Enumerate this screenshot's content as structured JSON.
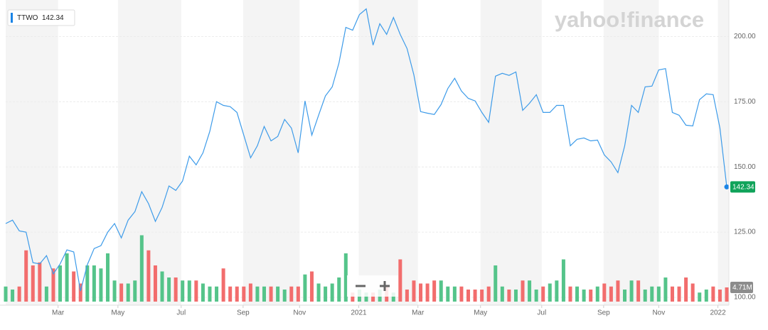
{
  "chart_data": {
    "type": "line",
    "watermark": "yahoo!finance",
    "series": [
      {
        "name": "TTWO",
        "color": "#3d9be9",
        "values": [
          128.3,
          129.6,
          125.5,
          125,
          113.3,
          112.8,
          116,
          109,
          112.8,
          118.2,
          117.4,
          102.4,
          112.5,
          118.7,
          119.8,
          125,
          128.3,
          122.8,
          129.6,
          132.9,
          140.5,
          135.9,
          129.1,
          134.5,
          142.7,
          141,
          144.6,
          154.1,
          150.8,
          155.4,
          163.6,
          175,
          173.6,
          173.1,
          170.9,
          162.2,
          153.5,
          158.1,
          165.5,
          160,
          161.7,
          168.2,
          164.9,
          155.4,
          175.3,
          162.2,
          169.8,
          177.2,
          180.7,
          189.9,
          203.5,
          202.4,
          208.4,
          210.6,
          196.7,
          204.9,
          200.8,
          207.3,
          200.8,
          195.4,
          185.3,
          171.2,
          170.6,
          170.1,
          173.9,
          180.1,
          184,
          179.1,
          176.3,
          175.3,
          170.9,
          167.1,
          184.8,
          185.9,
          185.1,
          186.4,
          171.7,
          174.4,
          177.7,
          170.9,
          170.9,
          173.6,
          173.6,
          158.1,
          160.6,
          161.1,
          160,
          160.3,
          154.6,
          151.9,
          147.8,
          158.1,
          173.6,
          170.9,
          180.7,
          181,
          187.2,
          187.7,
          170.9,
          169.8,
          166,
          165.7,
          175.8,
          178,
          177.7,
          164.9,
          142.34
        ]
      },
      {
        "type": "bar",
        "axis": "y2",
        "up_color": "#55c48a",
        "down_color": "#f26d6d",
        "values": [
          5,
          4,
          5,
          17,
          12,
          13,
          5,
          11,
          12,
          16,
          10,
          6,
          12,
          12,
          11,
          16,
          7,
          6,
          6,
          7,
          22,
          17,
          12,
          10,
          8,
          8,
          7,
          7,
          7,
          6,
          5,
          5,
          11,
          5,
          5,
          5,
          6,
          5,
          5,
          5,
          5,
          4,
          5,
          5,
          9,
          10,
          6,
          5,
          6,
          8,
          16,
          3,
          4,
          3,
          3,
          4,
          5,
          3,
          14,
          4,
          7,
          6,
          6,
          7,
          7,
          5,
          5,
          5,
          4,
          4,
          4,
          5,
          12,
          5,
          4,
          4,
          7,
          7,
          4,
          5,
          6,
          7,
          14,
          5,
          5,
          4,
          4,
          5,
          6,
          5,
          7,
          4,
          7,
          7,
          4,
          5,
          5,
          8,
          5,
          5,
          8,
          6,
          3,
          4,
          5,
          4,
          4.71
        ]
      }
    ],
    "xlim": [
      0,
      106
    ],
    "xticks": [
      {
        "value": 7.7,
        "label": "Mar"
      },
      {
        "value": 16.5,
        "label": "May"
      },
      {
        "value": 25.8,
        "label": "Jul"
      },
      {
        "value": 34.9,
        "label": "Sep"
      },
      {
        "value": 43.2,
        "label": "Nov"
      },
      {
        "value": 51.9,
        "label": "2021"
      },
      {
        "value": 60.6,
        "label": "Mar"
      },
      {
        "value": 69.8,
        "label": "May"
      },
      {
        "value": 78.8,
        "label": "Jul"
      },
      {
        "value": 87.9,
        "label": "Sep"
      },
      {
        "value": 96,
        "label": "Nov"
      },
      {
        "value": 104.7,
        "label": "2022"
      }
    ],
    "ylim": [
      97,
      214
    ],
    "yticks": [
      {
        "value": 200,
        "label": "200.00"
      },
      {
        "value": 175,
        "label": "175.00"
      },
      {
        "value": 150,
        "label": "150.00"
      },
      {
        "value": 125,
        "label": "125.00"
      },
      {
        "value": 100,
        "label": "100.00"
      }
    ],
    "y2lim": [
      0,
      100
    ],
    "y2ticks": [
      {
        "value": 4.71,
        "label": "4.71M"
      }
    ],
    "grid": true
  }
}
